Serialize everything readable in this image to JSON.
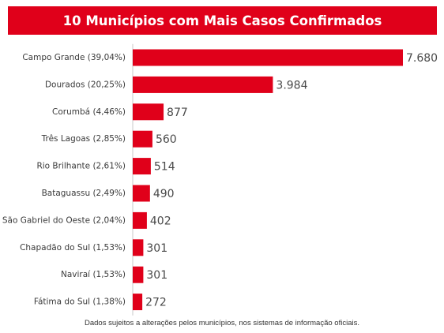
{
  "title": "10 Municípios com Mais Casos Confirmados",
  "footnote": "Dados sujeitos a alterações pelos municípios, nos sistemas de informação oficiais.",
  "colors": {
    "banner": "#e0001a",
    "bar": "#e0001a",
    "axis": "#c8c8c8"
  },
  "chart_data": {
    "type": "bar",
    "orientation": "horizontal",
    "title": "10 Municípios com Mais Casos Confirmados",
    "categories": [
      "Campo Grande (39,04%)",
      "Dourados (20,25%)",
      "Corumbá (4,46%)",
      "Três Lagoas (2,85%)",
      "Rio Brilhante (2,61%)",
      "Bataguassu (2,49%)",
      "São Gabriel do Oeste (2,04%)",
      "Chapadão do Sul (1,53%)",
      "Naviraí (1,53%)",
      "Fátima do Sul (1,38%)"
    ],
    "values": [
      7680,
      3984,
      877,
      560,
      514,
      490,
      402,
      301,
      301,
      272
    ],
    "value_labels": [
      "7.680",
      "3.984",
      "877",
      "560",
      "514",
      "490",
      "402",
      "301",
      "301",
      "272"
    ],
    "xlabel": "",
    "ylabel": "",
    "grid": false,
    "legend": "none"
  }
}
